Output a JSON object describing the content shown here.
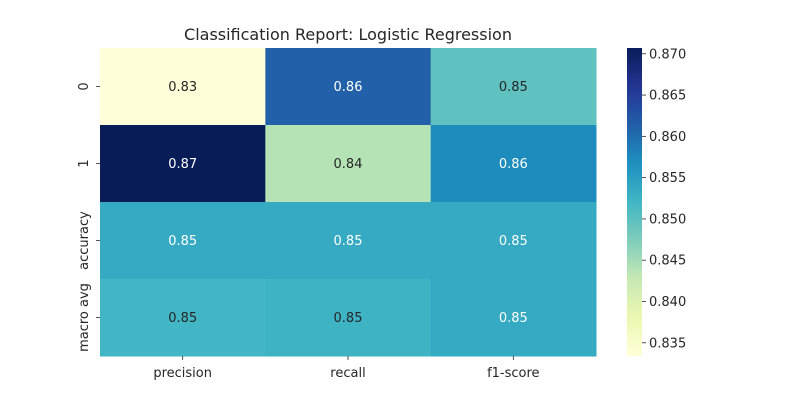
{
  "chart_data": {
    "type": "heatmap",
    "title": "Classification Report: Logistic Regression",
    "xlabel": "",
    "ylabel": "",
    "columns": [
      "precision",
      "recall",
      "f1-score"
    ],
    "rows": [
      "0",
      "1",
      "accuracy",
      "macro avg"
    ],
    "values": [
      [
        0.8334,
        0.8611,
        0.8498
      ],
      [
        0.8707,
        0.8438,
        0.8572
      ],
      [
        0.8535,
        0.8535,
        0.8535
      ],
      [
        0.852,
        0.8524,
        0.8535
      ]
    ],
    "value_labels": [
      [
        "0.83",
        "0.86",
        "0.85"
      ],
      [
        "0.87",
        "0.84",
        "0.86"
      ],
      [
        "0.85",
        "0.85",
        "0.85"
      ],
      [
        "0.85",
        "0.85",
        "0.85"
      ]
    ],
    "colormap": "YlGnBu",
    "colorbar": {
      "range": [
        0.8334,
        0.8707
      ],
      "ticks": [
        "0.835",
        "0.840",
        "0.845",
        "0.850",
        "0.855",
        "0.860",
        "0.865",
        "0.870"
      ]
    },
    "grid": false,
    "legend": "colorbar-right"
  }
}
